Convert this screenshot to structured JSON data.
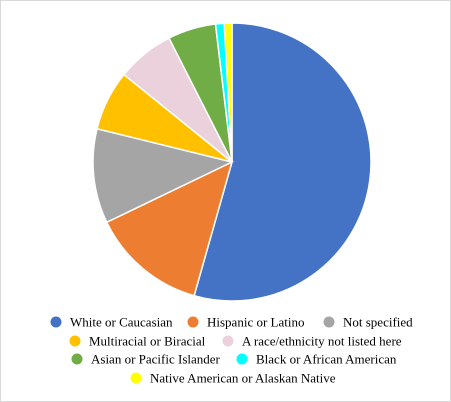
{
  "chart_data": {
    "type": "pie",
    "title": "",
    "legend_position": "bottom",
    "start_angle_deg": 0,
    "direction": "clockwise",
    "slices": [
      {
        "label": "White or Caucasian",
        "value": 54.5,
        "color": "#4472C4"
      },
      {
        "label": "Hispanic or Latino",
        "value": 13.5,
        "color": "#ED7D31"
      },
      {
        "label": "Not specified",
        "value": 11.0,
        "color": "#A5A5A5"
      },
      {
        "label": "Multiracial or Biracial",
        "value": 7.0,
        "color": "#FFC000"
      },
      {
        "label": "A race/ethnicity not listed here",
        "value": 6.7,
        "color": "#EAD1DC"
      },
      {
        "label": "Asian or Pacific Islander",
        "value": 5.6,
        "color": "#70AD47"
      },
      {
        "label": "Black or African American",
        "value": 1.0,
        "color": "#00FFFF"
      },
      {
        "label": "Native American or Alaskan Native",
        "value": 0.9,
        "color": "#FFFF00"
      }
    ]
  }
}
